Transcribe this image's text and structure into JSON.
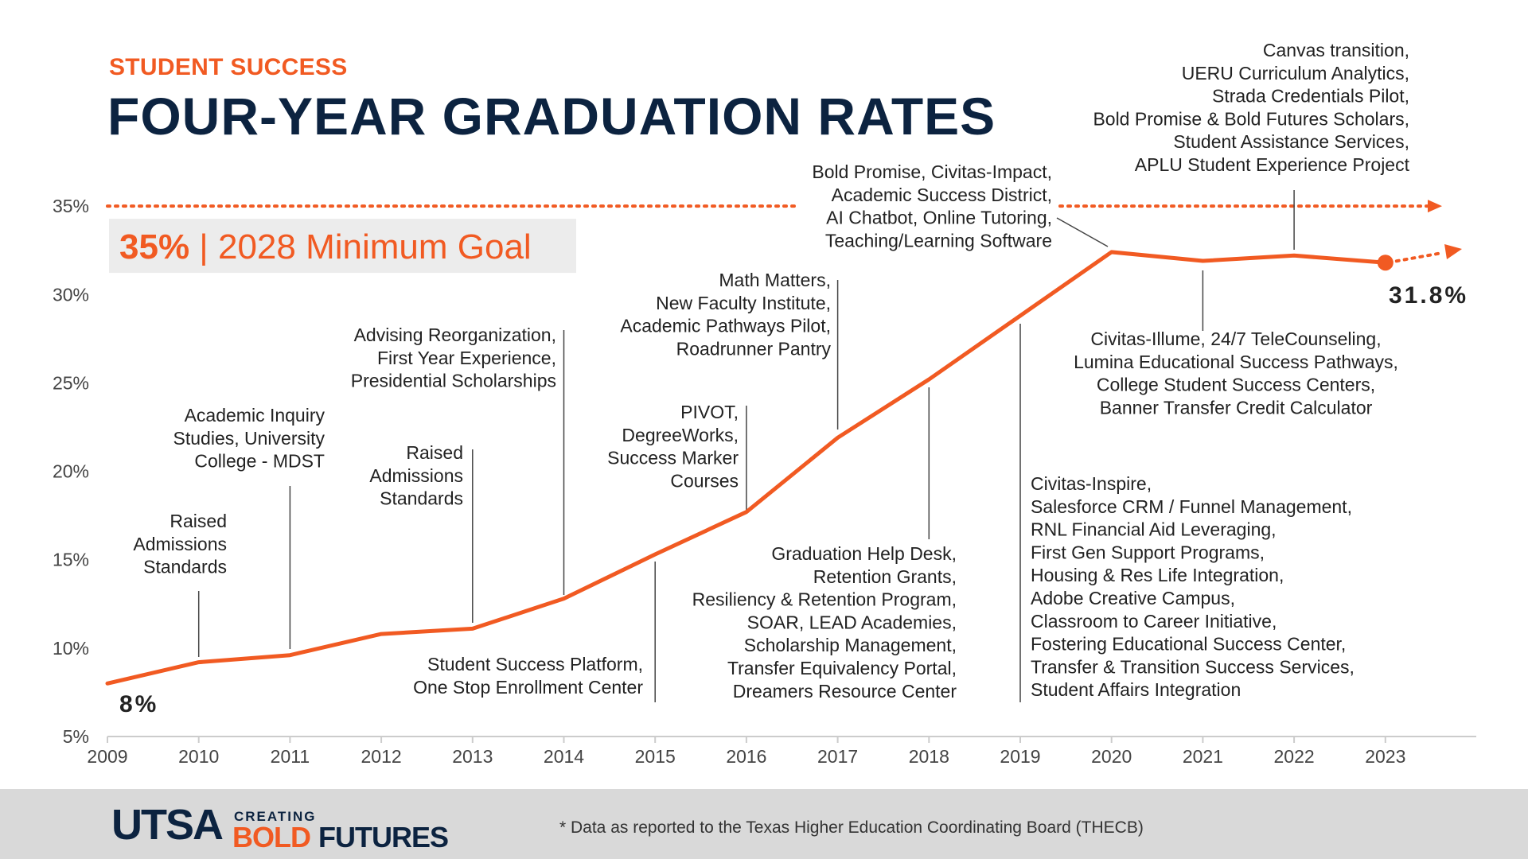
{
  "header": {
    "kicker": "STUDENT SUCCESS",
    "title": "FOUR-YEAR GRADUATION RATES"
  },
  "footer": {
    "logo_utsa": "UTSA",
    "logo_creating": "CREATING",
    "logo_bold": "BOLD",
    "logo_futures": "FUTURES",
    "footnote": "* Data as reported to the Texas Higher Education Coordinating Board (THECB)"
  },
  "colors": {
    "accent": "#f15a22",
    "navy": "#0c2340",
    "axis": "#cccccc",
    "goal_box": "#ececec",
    "footer_bg": "#d9d9d9"
  },
  "chart_data": {
    "type": "line",
    "x": [
      2009,
      2010,
      2011,
      2012,
      2013,
      2014,
      2015,
      2016,
      2017,
      2018,
      2019,
      2020,
      2021,
      2022,
      2023
    ],
    "y_axis_ticks": [
      "5%",
      "10%",
      "15%",
      "20%",
      "25%",
      "30%",
      "35%"
    ],
    "ylim": [
      5,
      35
    ],
    "series": [
      {
        "values": [
          8.0,
          9.2,
          9.6,
          10.8,
          11.1,
          12.8,
          15.3,
          17.7,
          21.9,
          25.2,
          28.8,
          32.4,
          31.9,
          32.2,
          31.8
        ]
      }
    ],
    "start_label": "8%",
    "end_label": "31.8%",
    "goal": {
      "value": 35,
      "pct": "35%",
      "sep": "|",
      "text": "2028 Minimum Goal"
    },
    "annotations": [
      {
        "x": 2010,
        "lines": [
          "Raised",
          "Admissions",
          "Standards"
        ]
      },
      {
        "x": 2011,
        "lines": [
          "Academic Inquiry",
          "Studies, University",
          "College - MDST"
        ]
      },
      {
        "x": 2013,
        "lines": [
          "Raised",
          "Admissions",
          "Standards"
        ]
      },
      {
        "x": 2014,
        "lines": [
          "Advising Reorganization,",
          "First Year Experience,",
          "Presidential Scholarships"
        ]
      },
      {
        "x": 2015,
        "lines": [
          "Student Success Platform,",
          "One Stop Enrollment Center"
        ]
      },
      {
        "x": 2016,
        "lines": [
          "PIVOT,",
          "DegreeWorks,",
          "Success Marker",
          "Courses"
        ]
      },
      {
        "x": 2017,
        "lines": [
          "Math Matters,",
          "New Faculty Institute,",
          "Academic Pathways Pilot,",
          "Roadrunner Pantry"
        ]
      },
      {
        "x": 2018,
        "lines": [
          "Graduation Help Desk,",
          "Retention Grants,",
          "Resiliency & Retention Program,",
          "SOAR, LEAD Academies,",
          "Scholarship Management,",
          "Transfer Equivalency Portal,",
          "Dreamers Resource Center"
        ]
      },
      {
        "x": 2019,
        "lines": [
          "Civitas-Inspire,",
          "Salesforce CRM / Funnel Management,",
          "RNL Financial Aid Leveraging,",
          "First Gen Support Programs,",
          "Housing & Res Life Integration,",
          "Adobe Creative Campus,",
          "Classroom to Career Initiative,",
          "Fostering Educational Success Center,",
          "Transfer & Transition Success Services,",
          "Student Affairs Integration"
        ]
      },
      {
        "x": 2020,
        "lines": [
          "Bold Promise, Civitas-Impact,",
          "Academic Success District,",
          "AI Chatbot, Online Tutoring,",
          "Teaching/Learning Software"
        ]
      },
      {
        "x": 2021,
        "lines": [
          "Civitas-Illume, 24/7 TeleCounseling,",
          "Lumina Educational Success Pathways,",
          "College Student Success Centers,",
          "Banner Transfer Credit Calculator"
        ]
      },
      {
        "x": 2022,
        "lines": [
          "Canvas transition,",
          "UERU Curriculum Analytics,",
          "Strada Credentials Pilot,",
          "Bold Promise & Bold Futures Scholars,",
          "Student Assistance Services,",
          "APLU Student Experience Project"
        ]
      }
    ]
  }
}
